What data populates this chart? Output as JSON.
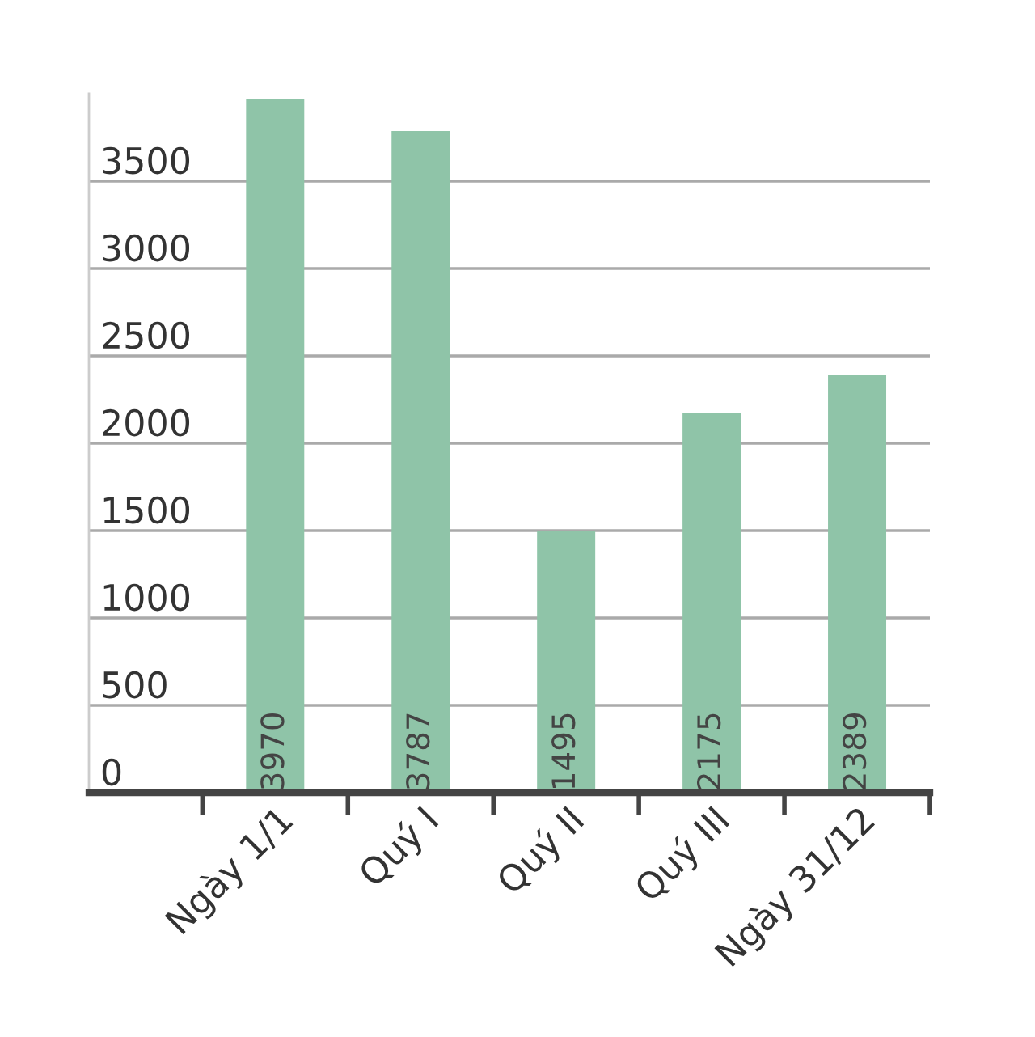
{
  "chart_data": {
    "type": "bar",
    "categories": [
      "Ngày 1/1",
      "Quý I",
      "Quý II",
      "Quý III",
      "Ngày 31/12"
    ],
    "values": [
      3970,
      3787,
      1495,
      2175,
      2389
    ],
    "color": "#8fc4a8",
    "ylim": [
      0,
      4000
    ],
    "yticks": [
      0,
      500,
      1000,
      1500,
      2000,
      2500,
      3000,
      3500
    ],
    "grid": "y",
    "data_labels": true
  }
}
